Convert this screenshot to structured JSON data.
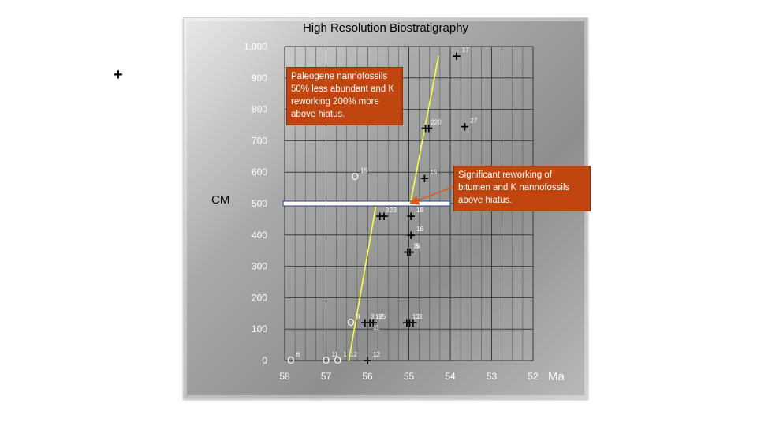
{
  "page": {
    "stray_mark": "+"
  },
  "chart_data": {
    "type": "scatter",
    "title": "High Resolution Biostratigraphy",
    "ylabel": "CM",
    "xlabel_unit": "Ma",
    "xlim": [
      58,
      52
    ],
    "ylim": [
      0,
      1000
    ],
    "x_reversed": true,
    "grid": true,
    "x_ticks": [
      "58",
      "57",
      "56",
      "55",
      "54",
      "53",
      "52"
    ],
    "x_tick_values": [
      58,
      57,
      56,
      55,
      54,
      53,
      52
    ],
    "y_ticks": [
      "0",
      "100",
      "200",
      "300",
      "400",
      "500",
      "600",
      "700",
      "800",
      "900",
      "1,000"
    ],
    "y_tick_values": [
      0,
      100,
      200,
      300,
      400,
      500,
      600,
      700,
      800,
      900,
      1000
    ],
    "hiatus_depth": 500,
    "trend_lines": [
      {
        "color": "#ffff44",
        "points": [
          [
            56.45,
            0
          ],
          [
            55.8,
            490
          ]
        ]
      },
      {
        "color": "#ffff44",
        "points": [
          [
            54.95,
            510
          ],
          [
            54.28,
            970
          ]
        ]
      }
    ],
    "points": [
      {
        "x": 57.85,
        "y": 0,
        "marker": "o",
        "label": "6"
      },
      {
        "x": 57.0,
        "y": 0,
        "marker": "o",
        "label": "11"
      },
      {
        "x": 56.72,
        "y": 0,
        "marker": "o",
        "label": "1"
      },
      {
        "x": 56.55,
        "y": 0,
        "marker": "",
        "label": "12"
      },
      {
        "x": 56.0,
        "y": 0,
        "marker": "+",
        "label": "12"
      },
      {
        "x": 56.4,
        "y": 120,
        "marker": "o",
        "label": "9"
      },
      {
        "x": 56.06,
        "y": 120,
        "marker": "+",
        "label": "3"
      },
      {
        "x": 55.94,
        "y": 120,
        "marker": "+",
        "label": "19"
      },
      {
        "x": 55.86,
        "y": 120,
        "marker": "+",
        "label": "25"
      },
      {
        "x": 56.0,
        "y": 85,
        "marker": "",
        "label": "11"
      },
      {
        "x": 55.05,
        "y": 120,
        "marker": "+",
        "label": "13"
      },
      {
        "x": 54.98,
        "y": 120,
        "marker": "+",
        "label": ""
      },
      {
        "x": 54.9,
        "y": 120,
        "marker": "+",
        "label": "3"
      },
      {
        "x": 55.7,
        "y": 460,
        "marker": "+",
        "label": "8"
      },
      {
        "x": 55.6,
        "y": 460,
        "marker": "+",
        "label": "23"
      },
      {
        "x": 54.95,
        "y": 460,
        "marker": "+",
        "label": "18"
      },
      {
        "x": 55.03,
        "y": 345,
        "marker": "+",
        "label": "10"
      },
      {
        "x": 54.97,
        "y": 345,
        "marker": "+",
        "label": "5"
      },
      {
        "x": 54.95,
        "y": 400,
        "marker": "+",
        "label": "16"
      },
      {
        "x": 56.3,
        "y": 585,
        "marker": "o",
        "label": "15"
      },
      {
        "x": 54.62,
        "y": 580,
        "marker": "+",
        "label": "15"
      },
      {
        "x": 54.6,
        "y": 740,
        "marker": "+",
        "label": "2"
      },
      {
        "x": 54.52,
        "y": 740,
        "marker": "+",
        "label": "20"
      },
      {
        "x": 53.65,
        "y": 745,
        "marker": "+",
        "label": "27"
      },
      {
        "x": 53.85,
        "y": 970,
        "marker": "+",
        "label": "17"
      }
    ],
    "annotations": [
      {
        "text": "Paleogene nannofossils 50% less abundant and K reworking 200% more above hiatus."
      },
      {
        "text": "Significant reworking of bitumen and K nannofossils above hiatus.",
        "arrow_to": [
          55.05,
          500
        ]
      }
    ],
    "colors": {
      "hiatus_line": "#ffffff",
      "hiatus_border": "#1f3c88",
      "callout_fill": "#c0450f",
      "arrow": "#e05a1a",
      "trend": "#ffff44"
    }
  }
}
